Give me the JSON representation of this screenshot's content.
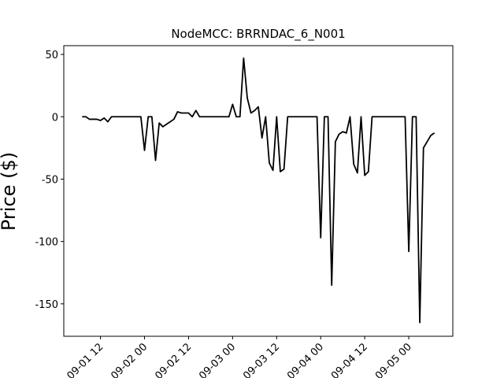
{
  "chart_data": {
    "type": "line",
    "title": "NodeMCC: BRRNDAC_6_N001",
    "y_label": "Price ($)",
    "x": [
      "09-01 07",
      "09-01 08",
      "09-01 09",
      "09-01 10",
      "09-01 11",
      "09-01 12",
      "09-01 13",
      "09-01 14",
      "09-01 15",
      "09-01 16",
      "09-01 17",
      "09-01 18",
      "09-01 19",
      "09-01 20",
      "09-01 21",
      "09-01 22",
      "09-01 23",
      "09-02 00",
      "09-02 01",
      "09-02 02",
      "09-02 03",
      "09-02 04",
      "09-02 05",
      "09-02 06",
      "09-02 07",
      "09-02 08",
      "09-02 09",
      "09-02 10",
      "09-02 11",
      "09-02 12",
      "09-02 13",
      "09-02 14",
      "09-02 15",
      "09-02 16",
      "09-02 17",
      "09-02 18",
      "09-02 19",
      "09-02 20",
      "09-02 21",
      "09-02 22",
      "09-02 23",
      "09-03 00",
      "09-03 01",
      "09-03 02",
      "09-03 03",
      "09-03 04",
      "09-03 05",
      "09-03 06",
      "09-03 07",
      "09-03 08",
      "09-03 09",
      "09-03 10",
      "09-03 11",
      "09-03 12",
      "09-03 13",
      "09-03 14",
      "09-03 15",
      "09-03 16",
      "09-03 17",
      "09-03 18",
      "09-03 19",
      "09-03 20",
      "09-03 21",
      "09-03 22",
      "09-03 23",
      "09-04 00",
      "09-04 01",
      "09-04 02",
      "09-04 03",
      "09-04 04",
      "09-04 05",
      "09-04 06",
      "09-04 07",
      "09-04 08",
      "09-04 09",
      "09-04 10",
      "09-04 11",
      "09-04 12",
      "09-04 13",
      "09-04 14",
      "09-04 15",
      "09-04 16",
      "09-04 17",
      "09-04 18",
      "09-04 19",
      "09-04 20",
      "09-04 21",
      "09-04 22",
      "09-04 23",
      "09-05 00",
      "09-05 01",
      "09-05 02",
      "09-05 03",
      "09-05 04",
      "09-05 05",
      "09-05 06",
      "09-05 07"
    ],
    "values": [
      0,
      0,
      -2,
      -2,
      -2,
      -3,
      -1,
      -4,
      0,
      0,
      0,
      0,
      0,
      0,
      0,
      0,
      0,
      -27,
      0,
      0,
      -35,
      -5,
      -8,
      -6,
      -4,
      -2,
      4,
      3,
      3,
      3,
      0,
      5,
      0,
      0,
      0,
      0,
      0,
      0,
      0,
      0,
      0,
      10,
      0,
      0,
      47,
      15,
      3,
      5,
      8,
      -17,
      0,
      -37,
      -43,
      0,
      -44,
      -42,
      0,
      0,
      0,
      0,
      0,
      0,
      0,
      0,
      0,
      -97,
      0,
      0,
      -135,
      -20,
      -14,
      -12,
      -13,
      0,
      -38,
      -45,
      0,
      -47,
      -44,
      0,
      0,
      0,
      0,
      0,
      0,
      0,
      0,
      0,
      0,
      -108,
      0,
      0,
      -165,
      -25,
      -20,
      -15,
      -13
    ],
    "color": "#000000",
    "xlim": [
      "09-01 02",
      "09-05 12"
    ],
    "xticks": [
      "09-01 12",
      "09-02 00",
      "09-02 12",
      "09-03 00",
      "09-03 12",
      "09-04 00",
      "09-04 12",
      "09-05 00"
    ],
    "ylim": [
      -176,
      57
    ],
    "yticks": [
      -150,
      -100,
      -50,
      0,
      50
    ]
  }
}
